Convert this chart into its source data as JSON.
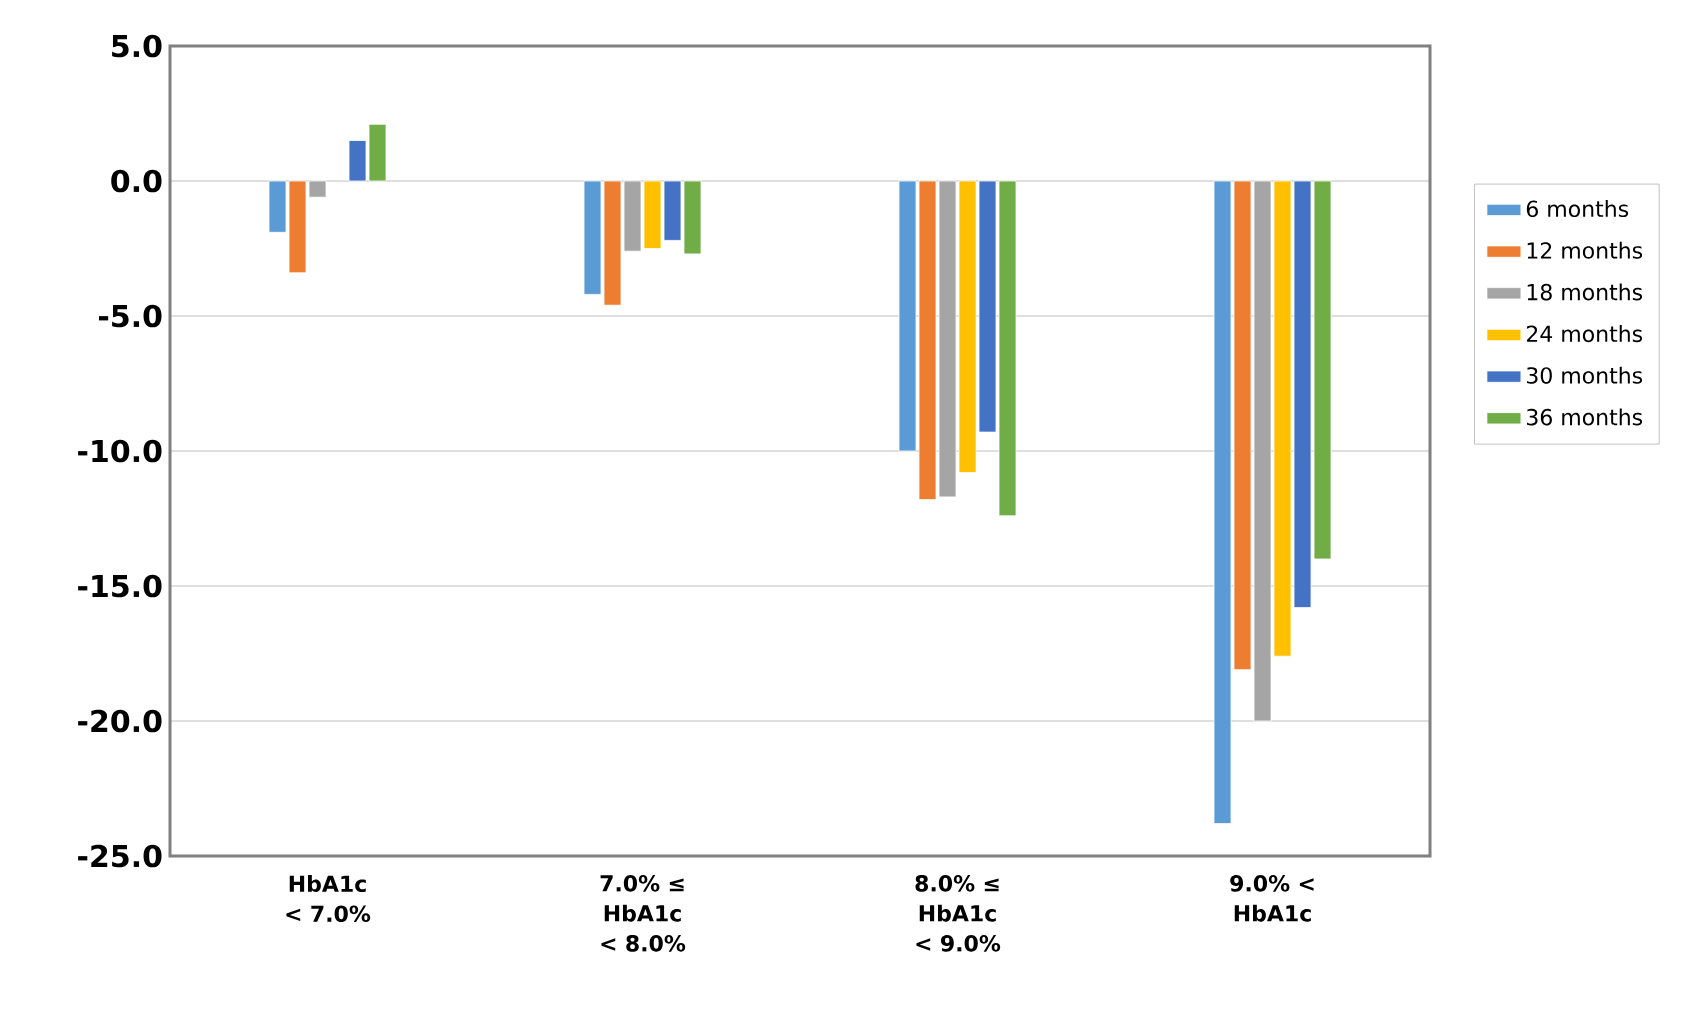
{
  "chart_data": {
    "type": "bar",
    "categories": [
      "HbA1c < 7.0%",
      "7.0% ≤ HbA1c < 8.0%",
      "8.0% ≤ HbA1c < 9.0%",
      "9.0% < HbA1c"
    ],
    "series": [
      {
        "name": "6 months",
        "color": "#5b9bd5",
        "values": [
          -1.9,
          -4.2,
          -10.0,
          -23.8
        ]
      },
      {
        "name": "12 months",
        "color": "#ed7d31",
        "values": [
          -3.4,
          -4.6,
          -11.8,
          -18.1
        ]
      },
      {
        "name": "18 months",
        "color": "#a5a5a5",
        "values": [
          -0.6,
          -2.6,
          -11.7,
          -20.0
        ]
      },
      {
        "name": "24 months",
        "color": "#ffc000",
        "values": [
          null,
          -2.5,
          -10.8,
          -17.6
        ]
      },
      {
        "name": "30 months",
        "color": "#4472c4",
        "values": [
          1.5,
          -2.2,
          -9.3,
          -15.8
        ]
      },
      {
        "name": "36 months",
        "color": "#70ad47",
        "values": [
          2.1,
          -2.7,
          -12.4,
          -14.0
        ]
      }
    ],
    "ylim": [
      -25,
      5
    ],
    "yticks": [
      {
        "value": 5,
        "label": "5.0"
      },
      {
        "value": 0,
        "label": "0.0"
      },
      {
        "value": -5,
        "label": "-5.0"
      },
      {
        "value": -10,
        "label": "-10.0"
      },
      {
        "value": -15,
        "label": "-15.0"
      },
      {
        "value": -20,
        "label": "-20.0"
      },
      {
        "value": -25,
        "label": "-25.0"
      }
    ],
    "grid": "y",
    "legend": "right"
  }
}
